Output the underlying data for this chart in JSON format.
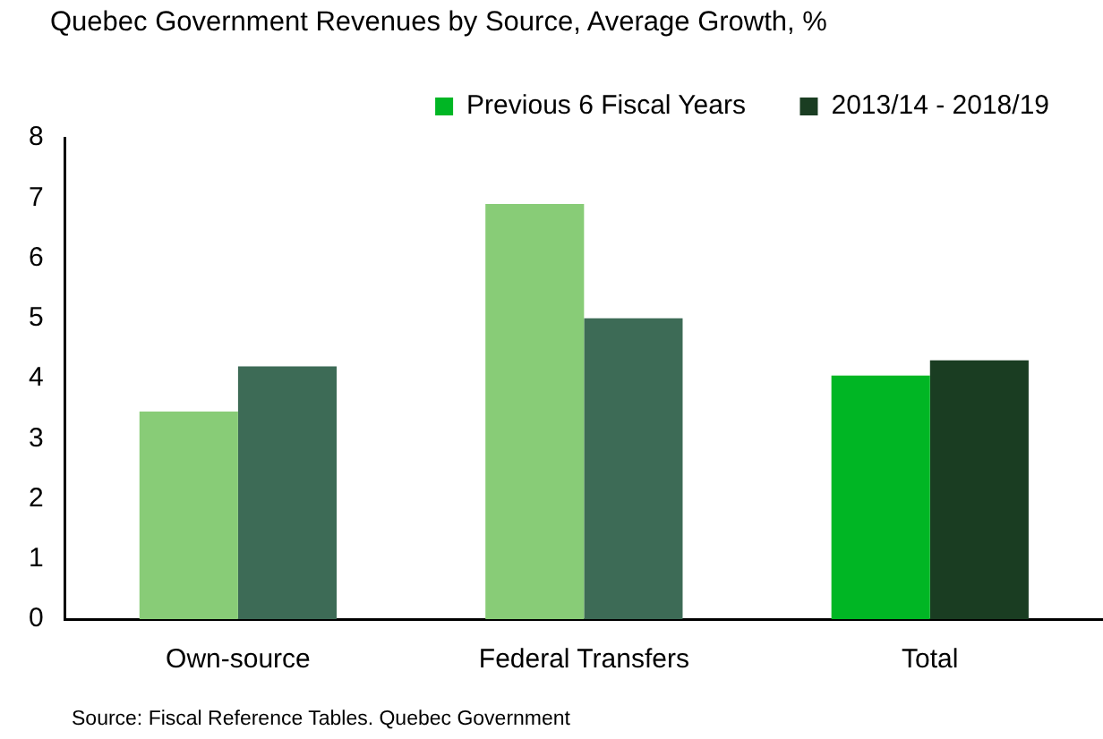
{
  "chart_data": {
    "type": "bar",
    "title": "Quebec Government Revenues by Source, Average Growth,  %",
    "categories": [
      "Own-source",
      "Federal Transfers",
      "Total"
    ],
    "series": [
      {
        "name": "Previous 6 Fiscal Years",
        "color": "#00b624",
        "colors": [
          "#88cc77",
          "#88cc77",
          "#00b624"
        ],
        "values": [
          3.45,
          6.9,
          4.05
        ]
      },
      {
        "name": "2013/14 - 2018/19",
        "color": "#1a3d22",
        "colors": [
          "#3d6b56",
          "#3d6b56",
          "#1a3d22"
        ],
        "values": [
          4.2,
          5.0,
          4.3
        ]
      }
    ],
    "ylim": [
      0,
      8
    ],
    "yticks": [
      0,
      1,
      2,
      3,
      4,
      5,
      6,
      7,
      8
    ],
    "grid": false,
    "legend": "top right",
    "annotations": [
      "Source: Fiscal Reference Tables. Quebec Government"
    ]
  }
}
